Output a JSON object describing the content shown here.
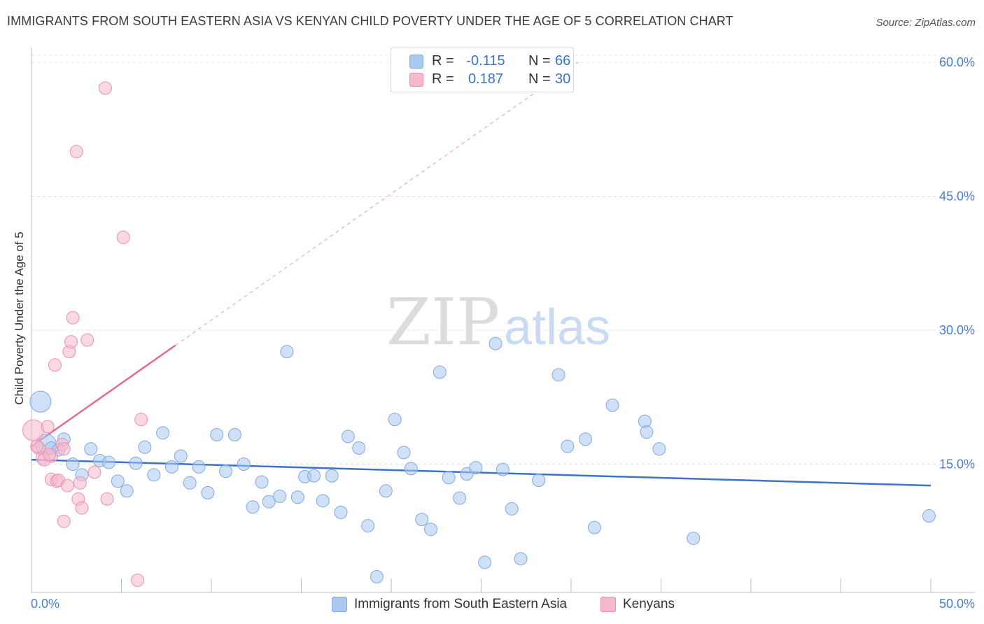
{
  "header": {
    "title": "IMMIGRANTS FROM SOUTH EASTERN ASIA VS KENYAN CHILD POVERTY UNDER THE AGE OF 5 CORRELATION CHART",
    "source": "Source: ZipAtlas.com"
  },
  "watermark": {
    "zip": "ZIP",
    "atlas": "atlas"
  },
  "legend": {
    "rows": [
      {
        "r_label": "R =",
        "r_value": "-0.115",
        "n_label": "N =",
        "n_value": "66",
        "color": "#aac8f0"
      },
      {
        "r_label": "R =",
        "r_value": "0.187",
        "n_label": "N =",
        "n_value": "30",
        "color": "#f6b8cc"
      }
    ]
  },
  "bottom_legend": {
    "series1": "Immigrants from South Eastern Asia",
    "series2": "Kenyans"
  },
  "chart_data": {
    "type": "scatter",
    "title": "IMMIGRANTS FROM SOUTH EASTERN ASIA VS KENYAN CHILD POVERTY UNDER THE AGE OF 5 CORRELATION CHART",
    "ylabel": "Child Poverty Under the Age of 5",
    "xlabel": "",
    "x_tick_labels": [
      "0.0%",
      "50.0%"
    ],
    "y_tick_labels": [
      "15.0%",
      "30.0%",
      "45.0%",
      "60.0%"
    ],
    "y_ticks": [
      15,
      30,
      45,
      60
    ],
    "xlim": [
      0,
      52.5
    ],
    "ylim": [
      0,
      63
    ],
    "grid": "horizontal dashed",
    "series": [
      {
        "name": "Immigrants from South Eastern Asia",
        "color": "#aac8f0",
        "stroke": "#7fa9e0",
        "trend": {
          "x1": 0,
          "y1": 15.5,
          "x2": 50,
          "y2": 12.6,
          "color": "#3a73c8"
        },
        "points": [
          {
            "x": 0.5,
            "y": 22.0,
            "big": true
          },
          {
            "x": 0.8,
            "y": 17.2,
            "big": true
          },
          {
            "x": 1.1,
            "y": 16.8
          },
          {
            "x": 1.5,
            "y": 16.6
          },
          {
            "x": 1.8,
            "y": 17.8
          },
          {
            "x": 2.3,
            "y": 15.0
          },
          {
            "x": 2.8,
            "y": 13.8
          },
          {
            "x": 3.3,
            "y": 16.7
          },
          {
            "x": 3.8,
            "y": 15.4
          },
          {
            "x": 4.3,
            "y": 15.2
          },
          {
            "x": 4.8,
            "y": 13.1
          },
          {
            "x": 5.3,
            "y": 12.0
          },
          {
            "x": 5.8,
            "y": 15.1
          },
          {
            "x": 6.3,
            "y": 16.9
          },
          {
            "x": 6.8,
            "y": 13.8
          },
          {
            "x": 7.3,
            "y": 18.5
          },
          {
            "x": 7.8,
            "y": 14.7
          },
          {
            "x": 8.3,
            "y": 15.9
          },
          {
            "x": 8.8,
            "y": 12.9
          },
          {
            "x": 9.3,
            "y": 14.7
          },
          {
            "x": 9.8,
            "y": 11.8
          },
          {
            "x": 10.3,
            "y": 18.3
          },
          {
            "x": 10.8,
            "y": 14.2
          },
          {
            "x": 11.3,
            "y": 18.3
          },
          {
            "x": 11.8,
            "y": 15.0
          },
          {
            "x": 12.3,
            "y": 10.2
          },
          {
            "x": 12.8,
            "y": 13.0
          },
          {
            "x": 13.2,
            "y": 10.8
          },
          {
            "x": 13.8,
            "y": 11.4
          },
          {
            "x": 14.2,
            "y": 27.6
          },
          {
            "x": 14.8,
            "y": 11.3
          },
          {
            "x": 15.2,
            "y": 13.6
          },
          {
            "x": 15.7,
            "y": 13.7
          },
          {
            "x": 16.2,
            "y": 10.9
          },
          {
            "x": 16.7,
            "y": 13.7
          },
          {
            "x": 17.2,
            "y": 9.6
          },
          {
            "x": 17.6,
            "y": 18.1
          },
          {
            "x": 18.2,
            "y": 16.8
          },
          {
            "x": 18.7,
            "y": 8.1
          },
          {
            "x": 19.2,
            "y": 2.4
          },
          {
            "x": 19.7,
            "y": 12.0
          },
          {
            "x": 20.2,
            "y": 20.0
          },
          {
            "x": 20.7,
            "y": 16.3
          },
          {
            "x": 21.1,
            "y": 14.5
          },
          {
            "x": 21.7,
            "y": 8.8
          },
          {
            "x": 22.2,
            "y": 7.7
          },
          {
            "x": 22.7,
            "y": 25.3
          },
          {
            "x": 23.2,
            "y": 13.5
          },
          {
            "x": 23.8,
            "y": 11.2
          },
          {
            "x": 24.2,
            "y": 13.9
          },
          {
            "x": 24.7,
            "y": 14.6
          },
          {
            "x": 25.2,
            "y": 4.0
          },
          {
            "x": 25.8,
            "y": 28.5
          },
          {
            "x": 26.2,
            "y": 14.4
          },
          {
            "x": 26.7,
            "y": 10.0
          },
          {
            "x": 27.2,
            "y": 4.4
          },
          {
            "x": 28.2,
            "y": 13.2
          },
          {
            "x": 29.3,
            "y": 25.0
          },
          {
            "x": 29.8,
            "y": 17.0
          },
          {
            "x": 30.8,
            "y": 17.8
          },
          {
            "x": 31.3,
            "y": 7.9
          },
          {
            "x": 32.3,
            "y": 21.6
          },
          {
            "x": 34.1,
            "y": 19.8
          },
          {
            "x": 34.2,
            "y": 18.6
          },
          {
            "x": 34.9,
            "y": 16.7
          },
          {
            "x": 36.8,
            "y": 6.7
          },
          {
            "x": 49.9,
            "y": 9.2
          }
        ]
      },
      {
        "name": "Kenyans",
        "color": "#f6b8cc",
        "stroke": "#ec8fae",
        "trend": {
          "x1": 0,
          "y1": 17.0,
          "x2": 8.0,
          "y2": 28.3,
          "x3": 30.4,
          "y3": 60.0,
          "color": "#e26a96"
        },
        "points": [
          {
            "x": 0.1,
            "y": 18.8,
            "big": true
          },
          {
            "x": 0.4,
            "y": 16.8
          },
          {
            "x": 0.6,
            "y": 15.7
          },
          {
            "x": 0.9,
            "y": 19.2
          },
          {
            "x": 1.1,
            "y": 15.9
          },
          {
            "x": 1.1,
            "y": 13.3
          },
          {
            "x": 1.3,
            "y": 26.1
          },
          {
            "x": 1.4,
            "y": 13.1
          },
          {
            "x": 1.5,
            "y": 13.2
          },
          {
            "x": 1.7,
            "y": 17.2
          },
          {
            "x": 1.8,
            "y": 16.7
          },
          {
            "x": 1.8,
            "y": 8.6
          },
          {
            "x": 2.0,
            "y": 12.6
          },
          {
            "x": 2.1,
            "y": 27.6
          },
          {
            "x": 2.2,
            "y": 28.7
          },
          {
            "x": 2.3,
            "y": 31.4
          },
          {
            "x": 2.5,
            "y": 50.0
          },
          {
            "x": 2.6,
            "y": 11.1
          },
          {
            "x": 2.7,
            "y": 12.9
          },
          {
            "x": 2.8,
            "y": 10.1
          },
          {
            "x": 3.1,
            "y": 28.9
          },
          {
            "x": 3.5,
            "y": 14.1
          },
          {
            "x": 4.1,
            "y": 57.1
          },
          {
            "x": 4.2,
            "y": 11.1
          },
          {
            "x": 5.1,
            "y": 40.4
          },
          {
            "x": 5.9,
            "y": 2.0
          },
          {
            "x": 6.1,
            "y": 20.0
          },
          {
            "x": 0.3,
            "y": 17.0
          },
          {
            "x": 0.7,
            "y": 15.5
          },
          {
            "x": 1.0,
            "y": 16.1
          }
        ]
      }
    ]
  }
}
